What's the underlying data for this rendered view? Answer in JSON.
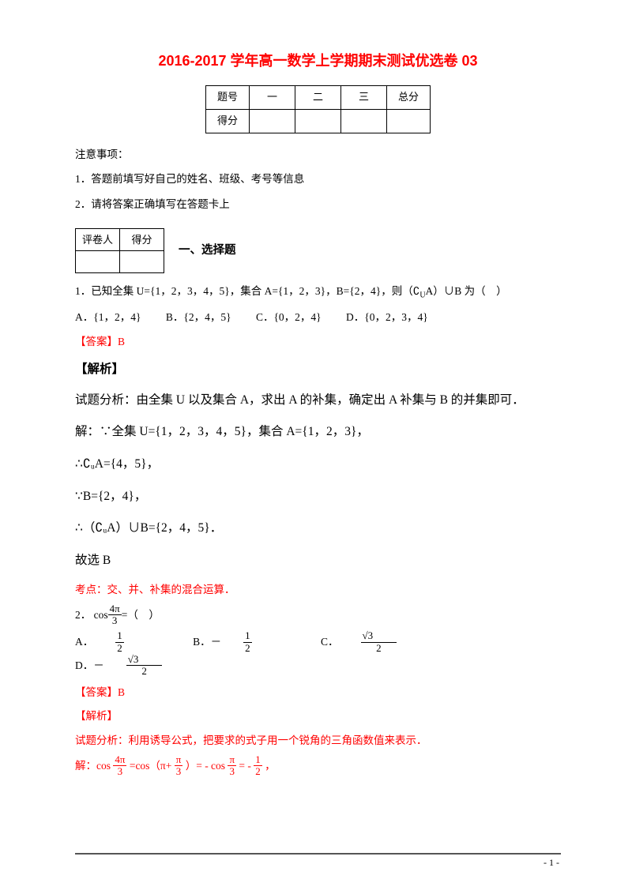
{
  "title": "2016-2017 学年高一数学上学期期末测试优选卷 03",
  "scoreTable": {
    "headers": [
      "题号",
      "一",
      "二",
      "三",
      "总分"
    ],
    "row2_label": "得分"
  },
  "notice_label": "注意事项：",
  "instructions": [
    "1．答题前填写好自己的姓名、班级、考号等信息",
    "2．请将答案正确填写在答题卡上"
  ],
  "evalTable": {
    "cols": [
      "评卷人",
      "得分"
    ]
  },
  "section1_title": "一、选择题",
  "q1": {
    "stem_pre": "1．已知全集 U={1，2，3，4，5}，集合 A={1，2，3}，B={2，4}，则（∁",
    "stem_sub": "U",
    "stem_post": "A）∪B 为（　）",
    "opts": {
      "A": "A．{1，2，4}",
      "B": "B．{2，4，5}",
      "C": "C．{0，2，4}",
      "D": "D．{0，2，3，4}"
    },
    "answer_label": "【答案】B",
    "analysis_head": "【解析】",
    "lines": [
      "试题分析：由全集 U 以及集合 A，求出 A 的补集，确定出 A 补集与 B 的并集即可．",
      "解：∵全集 U={1，2，3，4，5}，集合 A={1，2，3}，",
      "∴∁ᵤA={4，5}，",
      "∵B={2，4}，",
      "∴（∁ᵤA）∪B={2，4，5}．",
      "故选 B"
    ],
    "kaodian": "考点：交、并、补集的混合运算．"
  },
  "q2": {
    "stem_label": "2．",
    "expr_pre": "cos",
    "frac_num": "4π",
    "frac_den": "3",
    "stem_post": "=（　）",
    "opts": {
      "A_label": "A．",
      "A_num": "1",
      "A_den": "2",
      "B_label": "B．－",
      "B_num": "1",
      "B_den": "2",
      "C_label": "C．",
      "C_num": "√3",
      "C_den": "2",
      "D_label": "D．－",
      "D_num": "√3",
      "D_den": "2"
    },
    "answer_label": "【答案】B",
    "analysis_head": "【解析】",
    "analysis_text": "试题分析：利用诱导公式，把要求的式子用一个锐角的三角函数值来表示．",
    "sol_pre": "解：cos",
    "sol_f1n": "4π",
    "sol_f1d": "3",
    "sol_mid1": "=cos（π+",
    "sol_f2n": "π",
    "sol_f2d": "3",
    "sol_mid2": "）= - cos",
    "sol_f3n": "π",
    "sol_f3d": "3",
    "sol_mid3": "= -",
    "sol_f4n": "1",
    "sol_f4d": "2",
    "sol_end": "，"
  },
  "page_num": "- 1 -"
}
